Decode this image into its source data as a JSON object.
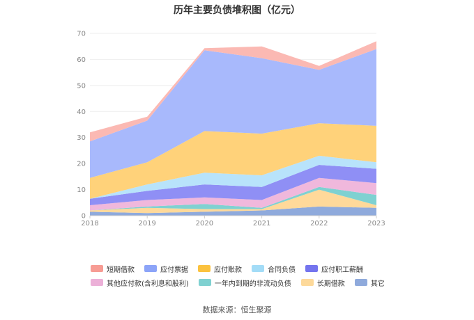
{
  "chart_data": {
    "type": "area",
    "stacked": true,
    "title": "历年主要负债堆积图（亿元）",
    "x": [
      "2018",
      "2019",
      "2020",
      "2021",
      "2022",
      "2023"
    ],
    "ylim": [
      0,
      70
    ],
    "yticks": [
      0,
      10,
      20,
      30,
      40,
      50,
      60,
      70
    ],
    "grid": true,
    "legend_position": "bottom",
    "series": [
      {
        "name": "其它",
        "color": "#8faadc",
        "values": [
          1.5,
          1.0,
          1.5,
          2.0,
          3.5,
          3.0
        ]
      },
      {
        "name": "长期借款",
        "color": "#ffd99a",
        "values": [
          0.5,
          2.0,
          1.0,
          0.5,
          6.5,
          1.0
        ]
      },
      {
        "name": "一年内到期的非流动负债",
        "color": "#7fd1d1",
        "values": [
          0.0,
          0.5,
          2.0,
          0.5,
          1.0,
          4.0
        ]
      },
      {
        "name": "其他应付款(含利息和股利)",
        "color": "#f0b8dc",
        "values": [
          2.0,
          2.5,
          2.5,
          3.0,
          3.5,
          4.5
        ]
      },
      {
        "name": "应付职工薪酬",
        "color": "#8f8ff5",
        "values": [
          2.5,
          3.5,
          5.0,
          5.0,
          5.0,
          5.5
        ]
      },
      {
        "name": "合同负债",
        "color": "#b8e3fb",
        "values": [
          0.0,
          2.5,
          4.5,
          4.5,
          3.5,
          2.5
        ]
      },
      {
        "name": "应付账款",
        "color": "#ffd27a",
        "values": [
          8.0,
          8.5,
          16.0,
          16.0,
          12.5,
          14.0
        ]
      },
      {
        "name": "应付票据",
        "color": "#a8b9fc",
        "values": [
          14.0,
          16.0,
          31.0,
          29.0,
          20.5,
          29.5
        ]
      },
      {
        "name": "短期借款",
        "color": "#fbb9b3",
        "values": [
          3.5,
          1.5,
          0.8,
          4.5,
          1.5,
          3.0
        ]
      }
    ],
    "legend_rows": [
      [
        {
          "name": "短期借款",
          "color": "#f79c94"
        },
        {
          "name": "应付票据",
          "color": "#8ca4f8"
        },
        {
          "name": "应付账款",
          "color": "#fbc23f"
        },
        {
          "name": "合同负债",
          "color": "#a3dcf7"
        },
        {
          "name": "应付职工薪酬",
          "color": "#7474ee"
        }
      ],
      [
        {
          "name": "其他应付款(含利息和股利)",
          "color": "#ecb0d8"
        },
        {
          "name": "一年内到期的非流动负债",
          "color": "#7fd1d1"
        },
        {
          "name": "长期借款",
          "color": "#fdd99a"
        },
        {
          "name": "其它",
          "color": "#8faadc"
        }
      ]
    ]
  },
  "source": "数据来源：恒生聚源"
}
